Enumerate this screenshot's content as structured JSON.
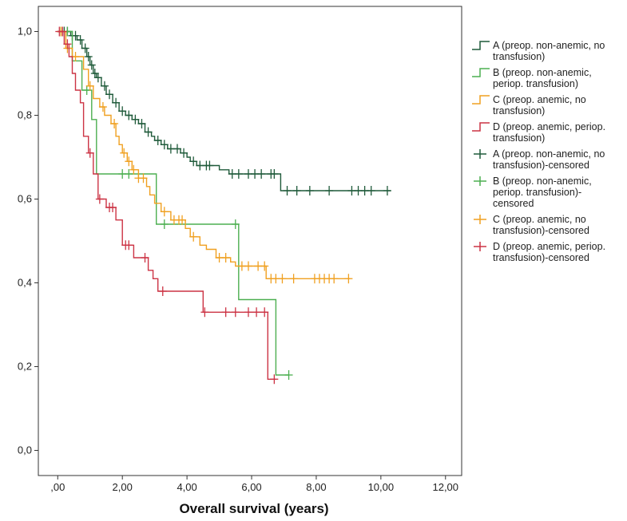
{
  "chart_data": {
    "type": "line",
    "subtype": "kaplan-meier-step",
    "title": "",
    "xlabel": "Overall survival (years)",
    "ylabel": "",
    "xlim": [
      -0.6,
      12.5
    ],
    "ylim": [
      -0.06,
      1.06
    ],
    "x_ticks": [
      0,
      2,
      4,
      6,
      8,
      10,
      12
    ],
    "x_tick_labels": [
      ",00",
      "2,00",
      "4,00",
      "6,00",
      "8,00",
      "10,00",
      "12,00"
    ],
    "y_ticks": [
      0,
      0.2,
      0.4,
      0.6,
      0.8,
      1.0
    ],
    "y_tick_labels": [
      "0,0",
      "0,2",
      "0,4",
      "0,6",
      "0,8",
      "1,0"
    ],
    "grid": false,
    "legend_position": "right",
    "legend": [
      {
        "label": [
          "A (preop. non-anemic, no",
          "transfusion)"
        ],
        "marker": "step",
        "color": "#1f5a3a"
      },
      {
        "label": [
          "B (preop. non-anemic,",
          "periop. transfusion)"
        ],
        "marker": "step",
        "color": "#4caf50"
      },
      {
        "label": [
          "C (preop. anemic, no",
          "transfusion)"
        ],
        "marker": "step",
        "color": "#f0a020"
      },
      {
        "label": [
          "D (preop. anemic, periop.",
          "transfusion)"
        ],
        "marker": "step",
        "color": "#cc3344"
      },
      {
        "label": [
          "A (preop. non-anemic, no",
          "transfusion)-censored"
        ],
        "marker": "plus",
        "color": "#1f5a3a"
      },
      {
        "label": [
          "B (preop. non-anemic,",
          "periop. transfusion)-",
          "censored"
        ],
        "marker": "plus",
        "color": "#4caf50"
      },
      {
        "label": [
          "C (preop. anemic, no",
          "transfusion)-censored"
        ],
        "marker": "plus",
        "color": "#f0a020"
      },
      {
        "label": [
          "D (preop. anemic, periop.",
          "transfusion)-censored"
        ],
        "marker": "plus",
        "color": "#cc3344"
      }
    ],
    "series": [
      {
        "name": "A (preop. non-anemic, no transfusion)",
        "color": "#1f5a3a",
        "steps": [
          [
            0,
            1.0
          ],
          [
            0.4,
            0.99
          ],
          [
            0.6,
            0.98
          ],
          [
            0.75,
            0.96
          ],
          [
            0.9,
            0.94
          ],
          [
            1.0,
            0.92
          ],
          [
            1.1,
            0.9
          ],
          [
            1.2,
            0.89
          ],
          [
            1.35,
            0.87
          ],
          [
            1.5,
            0.85
          ],
          [
            1.7,
            0.83
          ],
          [
            1.9,
            0.81
          ],
          [
            2.1,
            0.8
          ],
          [
            2.3,
            0.79
          ],
          [
            2.5,
            0.78
          ],
          [
            2.7,
            0.76
          ],
          [
            2.9,
            0.75
          ],
          [
            3.0,
            0.74
          ],
          [
            3.2,
            0.73
          ],
          [
            3.4,
            0.72
          ],
          [
            3.8,
            0.71
          ],
          [
            4.0,
            0.7
          ],
          [
            4.1,
            0.69
          ],
          [
            4.3,
            0.68
          ],
          [
            5.0,
            0.67
          ],
          [
            5.3,
            0.66
          ],
          [
            6.9,
            0.62
          ],
          [
            10.3,
            0.62
          ]
        ],
        "censored": [
          [
            0.2,
            1.0
          ],
          [
            0.3,
            1.0
          ],
          [
            0.45,
            1.0
          ],
          [
            0.55,
            0.99
          ],
          [
            0.7,
            0.98
          ],
          [
            0.85,
            0.96
          ],
          [
            0.95,
            0.94
          ],
          [
            1.05,
            0.92
          ],
          [
            1.15,
            0.9
          ],
          [
            1.25,
            0.89
          ],
          [
            1.45,
            0.87
          ],
          [
            1.6,
            0.85
          ],
          [
            1.8,
            0.83
          ],
          [
            2.0,
            0.81
          ],
          [
            2.2,
            0.8
          ],
          [
            2.4,
            0.79
          ],
          [
            2.6,
            0.78
          ],
          [
            2.8,
            0.76
          ],
          [
            3.1,
            0.74
          ],
          [
            3.3,
            0.73
          ],
          [
            3.5,
            0.72
          ],
          [
            3.7,
            0.72
          ],
          [
            3.9,
            0.71
          ],
          [
            4.2,
            0.69
          ],
          [
            4.4,
            0.68
          ],
          [
            4.6,
            0.68
          ],
          [
            4.7,
            0.68
          ],
          [
            5.4,
            0.66
          ],
          [
            5.6,
            0.66
          ],
          [
            5.9,
            0.66
          ],
          [
            6.1,
            0.66
          ],
          [
            6.3,
            0.66
          ],
          [
            6.6,
            0.66
          ],
          [
            6.7,
            0.66
          ],
          [
            7.1,
            0.62
          ],
          [
            7.4,
            0.62
          ],
          [
            7.8,
            0.62
          ],
          [
            8.4,
            0.62
          ],
          [
            9.1,
            0.62
          ],
          [
            9.3,
            0.62
          ],
          [
            9.5,
            0.62
          ],
          [
            9.7,
            0.62
          ],
          [
            10.2,
            0.62
          ]
        ]
      },
      {
        "name": "B (preop. non-anemic, periop. transfusion)",
        "color": "#4caf50",
        "steps": [
          [
            0,
            1.0
          ],
          [
            0.45,
            0.93
          ],
          [
            0.75,
            0.86
          ],
          [
            1.05,
            0.79
          ],
          [
            1.2,
            0.66
          ],
          [
            3.05,
            0.54
          ],
          [
            5.6,
            0.36
          ],
          [
            6.75,
            0.18
          ],
          [
            7.15,
            0.18
          ]
        ],
        "censored": [
          [
            0.1,
            1.0
          ],
          [
            0.3,
            0.97
          ],
          [
            0.9,
            0.86
          ],
          [
            2.0,
            0.66
          ],
          [
            2.2,
            0.66
          ],
          [
            3.3,
            0.54
          ],
          [
            5.5,
            0.54
          ],
          [
            7.15,
            0.18
          ]
        ]
      },
      {
        "name": "C (preop. anemic, no transfusion)",
        "color": "#f0a020",
        "steps": [
          [
            0,
            1.0
          ],
          [
            0.25,
            0.96
          ],
          [
            0.45,
            0.94
          ],
          [
            0.8,
            0.91
          ],
          [
            0.95,
            0.87
          ],
          [
            1.1,
            0.84
          ],
          [
            1.3,
            0.82
          ],
          [
            1.45,
            0.8
          ],
          [
            1.65,
            0.78
          ],
          [
            1.8,
            0.75
          ],
          [
            1.9,
            0.73
          ],
          [
            2.0,
            0.71
          ],
          [
            2.15,
            0.69
          ],
          [
            2.3,
            0.67
          ],
          [
            2.5,
            0.65
          ],
          [
            2.75,
            0.63
          ],
          [
            2.85,
            0.61
          ],
          [
            3.0,
            0.59
          ],
          [
            3.2,
            0.57
          ],
          [
            3.5,
            0.55
          ],
          [
            3.95,
            0.53
          ],
          [
            4.1,
            0.51
          ],
          [
            4.4,
            0.49
          ],
          [
            4.6,
            0.48
          ],
          [
            4.9,
            0.46
          ],
          [
            5.35,
            0.45
          ],
          [
            5.5,
            0.44
          ],
          [
            6.45,
            0.41
          ],
          [
            9.05,
            0.41
          ]
        ],
        "censored": [
          [
            0.1,
            1.0
          ],
          [
            0.15,
            0.99
          ],
          [
            0.3,
            0.96
          ],
          [
            0.55,
            0.94
          ],
          [
            1.0,
            0.87
          ],
          [
            1.4,
            0.82
          ],
          [
            1.75,
            0.78
          ],
          [
            2.05,
            0.71
          ],
          [
            2.2,
            0.69
          ],
          [
            2.35,
            0.68
          ],
          [
            2.5,
            0.67
          ],
          [
            2.65,
            0.65
          ],
          [
            3.3,
            0.57
          ],
          [
            3.6,
            0.55
          ],
          [
            3.75,
            0.55
          ],
          [
            3.85,
            0.55
          ],
          [
            4.2,
            0.51
          ],
          [
            5.0,
            0.46
          ],
          [
            5.2,
            0.46
          ],
          [
            5.7,
            0.44
          ],
          [
            5.9,
            0.44
          ],
          [
            6.2,
            0.44
          ],
          [
            6.4,
            0.44
          ],
          [
            6.6,
            0.41
          ],
          [
            6.75,
            0.41
          ],
          [
            6.95,
            0.41
          ],
          [
            7.3,
            0.41
          ],
          [
            7.95,
            0.41
          ],
          [
            8.1,
            0.41
          ],
          [
            8.25,
            0.41
          ],
          [
            8.4,
            0.41
          ],
          [
            8.55,
            0.41
          ],
          [
            9.0,
            0.41
          ]
        ]
      },
      {
        "name": "D (preop. anemic, periop. transfusion)",
        "color": "#cc3344",
        "steps": [
          [
            0,
            1.0
          ],
          [
            0.2,
            0.97
          ],
          [
            0.35,
            0.94
          ],
          [
            0.45,
            0.9
          ],
          [
            0.55,
            0.86
          ],
          [
            0.7,
            0.83
          ],
          [
            0.8,
            0.75
          ],
          [
            0.95,
            0.71
          ],
          [
            1.1,
            0.66
          ],
          [
            1.25,
            0.6
          ],
          [
            1.5,
            0.58
          ],
          [
            1.8,
            0.55
          ],
          [
            2.0,
            0.49
          ],
          [
            2.35,
            0.46
          ],
          [
            2.8,
            0.43
          ],
          [
            2.95,
            0.41
          ],
          [
            3.1,
            0.38
          ],
          [
            4.5,
            0.33
          ],
          [
            6.5,
            0.17
          ],
          [
            6.75,
            0.17
          ]
        ],
        "censored": [
          [
            0.05,
            1.0
          ],
          [
            0.15,
            0.99
          ],
          [
            0.3,
            0.97
          ],
          [
            1.0,
            0.71
          ],
          [
            1.3,
            0.6
          ],
          [
            1.6,
            0.58
          ],
          [
            1.7,
            0.58
          ],
          [
            2.1,
            0.49
          ],
          [
            2.2,
            0.49
          ],
          [
            2.7,
            0.46
          ],
          [
            3.25,
            0.38
          ],
          [
            4.55,
            0.33
          ],
          [
            5.2,
            0.33
          ],
          [
            5.5,
            0.33
          ],
          [
            5.9,
            0.33
          ],
          [
            6.15,
            0.33
          ],
          [
            6.4,
            0.33
          ],
          [
            6.7,
            0.17
          ]
        ]
      }
    ]
  }
}
